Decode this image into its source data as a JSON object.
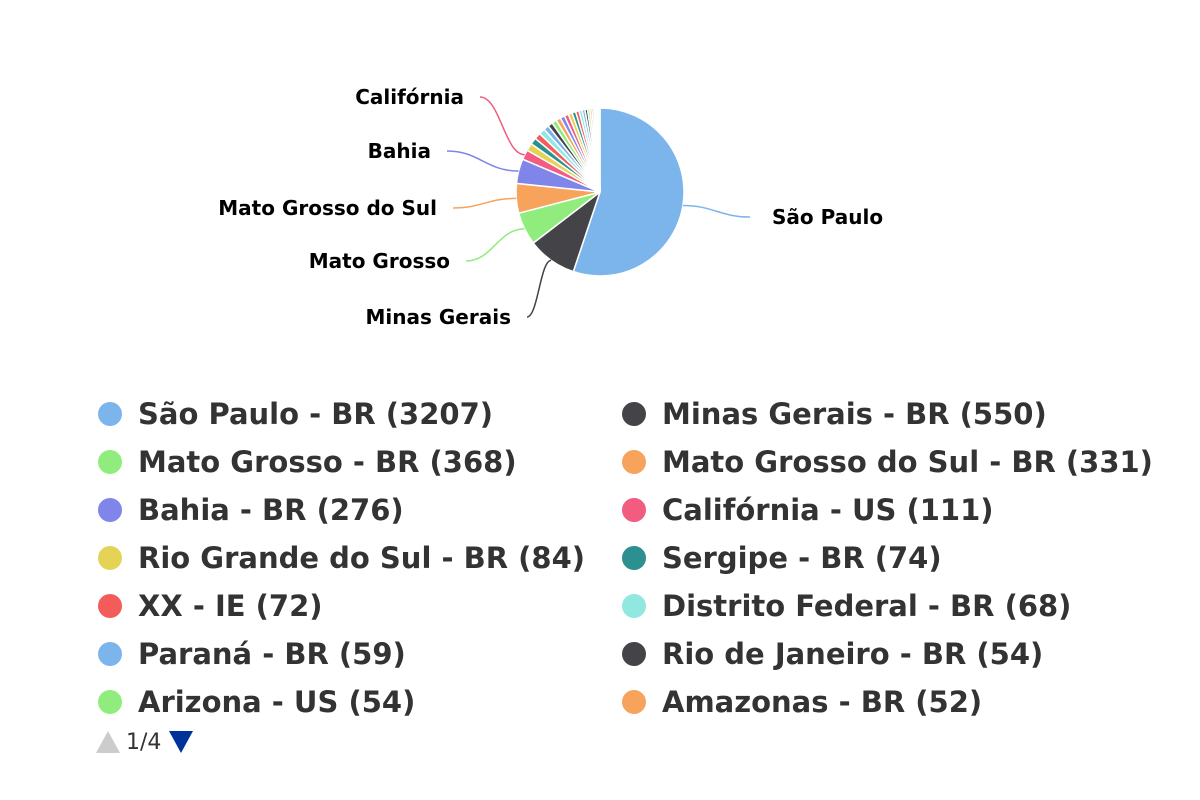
{
  "chart_data": {
    "type": "pie",
    "title": "",
    "slices": [
      {
        "label": "São Paulo",
        "legend": "São Paulo - BR (3207)",
        "value": 3207,
        "color": "#7cb5ec"
      },
      {
        "label": "Minas Gerais",
        "legend": "Minas Gerais - BR (550)",
        "value": 550,
        "color": "#434348"
      },
      {
        "label": "Mato Grosso",
        "legend": "Mato Grosso - BR (368)",
        "value": 368,
        "color": "#90ed7d"
      },
      {
        "label": "Mato Grosso do Sul",
        "legend": "Mato Grosso do Sul - BR (331)",
        "value": 331,
        "color": "#f7a35c"
      },
      {
        "label": "Bahia",
        "legend": "Bahia - BR (276)",
        "value": 276,
        "color": "#8085e9"
      },
      {
        "label": "Califórnia",
        "legend": "Califórnia - US (111)",
        "value": 111,
        "color": "#f15c80"
      },
      {
        "label": "",
        "legend": "Rio Grande do Sul - BR (84)",
        "value": 84,
        "color": "#e4d354"
      },
      {
        "label": "",
        "legend": "Sergipe - BR (74)",
        "value": 74,
        "color": "#2b908f"
      },
      {
        "label": "",
        "legend": "XX - IE (72)",
        "value": 72,
        "color": "#f45b5b"
      },
      {
        "label": "",
        "legend": "Distrito Federal - BR (68)",
        "value": 68,
        "color": "#91e8e1"
      },
      {
        "label": "",
        "legend": "Paraná - BR (59)",
        "value": 59,
        "color": "#7cb5ec"
      },
      {
        "label": "",
        "legend": "Rio de Janeiro - BR (54)",
        "value": 54,
        "color": "#434348"
      },
      {
        "label": "",
        "legend": "Arizona - US (54)",
        "value": 54,
        "color": "#90ed7d"
      },
      {
        "label": "",
        "legend": "Amazonas - BR (52)",
        "value": 52,
        "color": "#f7a35c"
      },
      {
        "label": "",
        "legend": "",
        "value": 50,
        "color": "#8085e9"
      },
      {
        "label": "",
        "legend": "",
        "value": 47,
        "color": "#f15c80"
      },
      {
        "label": "",
        "legend": "",
        "value": 44,
        "color": "#e4d354"
      },
      {
        "label": "",
        "legend": "",
        "value": 41,
        "color": "#2b908f"
      },
      {
        "label": "",
        "legend": "",
        "value": 38,
        "color": "#f45b5b"
      },
      {
        "label": "",
        "legend": "",
        "value": 35,
        "color": "#91e8e1"
      },
      {
        "label": "",
        "legend": "",
        "value": 32,
        "color": "#7cb5ec"
      },
      {
        "label": "",
        "legend": "",
        "value": 29,
        "color": "#434348"
      },
      {
        "label": "",
        "legend": "",
        "value": 26,
        "color": "#90ed7d"
      },
      {
        "label": "",
        "legend": "",
        "value": 23,
        "color": "#f7a35c"
      },
      {
        "label": "",
        "legend": "",
        "value": 20,
        "color": "#8085e9"
      },
      {
        "label": "",
        "legend": "",
        "value": 18,
        "color": "#f15c80"
      },
      {
        "label": "",
        "legend": "",
        "value": 16,
        "color": "#e4d354"
      },
      {
        "label": "",
        "legend": "",
        "value": 14,
        "color": "#2b908f"
      },
      {
        "label": "",
        "legend": "",
        "value": 12,
        "color": "#f45b5b"
      },
      {
        "label": "",
        "legend": "",
        "value": 10,
        "color": "#91e8e1"
      }
    ],
    "legend_placement": "bottom"
  },
  "pager": {
    "text": "1/4",
    "up_arrow_color": "#cccccc",
    "down_arrow_color": "#003399"
  }
}
